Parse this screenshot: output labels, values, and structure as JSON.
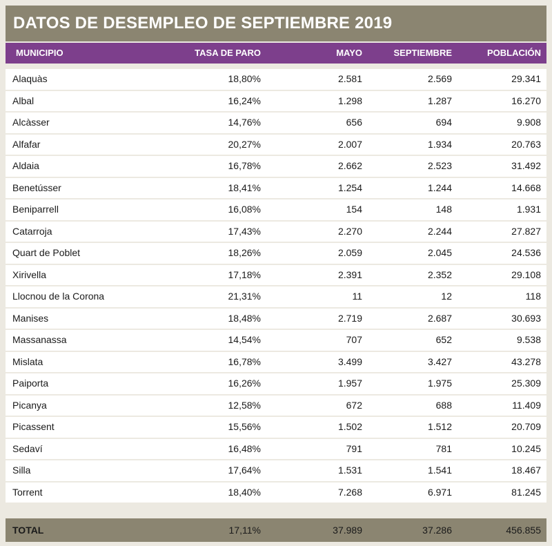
{
  "title": "DATOS DE DESEMPLEO DE SEPTIEMBRE 2019",
  "columns": {
    "municipio": "MUNICIPIO",
    "tasa": "TASA DE PARO",
    "mayo": "MAYO",
    "septiembre": "SEPTIEMBRE",
    "poblacion": "POBLACIÓN"
  },
  "rows": [
    {
      "municipio": "Alaquàs",
      "tasa": "18,80%",
      "mayo": "2.581",
      "septiembre": "2.569",
      "poblacion": "29.341"
    },
    {
      "municipio": "Albal",
      "tasa": "16,24%",
      "mayo": "1.298",
      "septiembre": "1.287",
      "poblacion": "16.270"
    },
    {
      "municipio": "Alcàsser",
      "tasa": "14,76%",
      "mayo": "656",
      "septiembre": "694",
      "poblacion": "9.908"
    },
    {
      "municipio": "Alfafar",
      "tasa": "20,27%",
      "mayo": "2.007",
      "septiembre": "1.934",
      "poblacion": "20.763"
    },
    {
      "municipio": "Aldaia",
      "tasa": "16,78%",
      "mayo": "2.662",
      "septiembre": "2.523",
      "poblacion": "31.492"
    },
    {
      "municipio": "Benetússer",
      "tasa": "18,41%",
      "mayo": "1.254",
      "septiembre": "1.244",
      "poblacion": "14.668"
    },
    {
      "municipio": "Beniparrell",
      "tasa": "16,08%",
      "mayo": "154",
      "septiembre": "148",
      "poblacion": "1.931"
    },
    {
      "municipio": "Catarroja",
      "tasa": "17,43%",
      "mayo": "2.270",
      "septiembre": "2.244",
      "poblacion": "27.827"
    },
    {
      "municipio": "Quart de Poblet",
      "tasa": "18,26%",
      "mayo": "2.059",
      "septiembre": "2.045",
      "poblacion": "24.536"
    },
    {
      "municipio": "Xirivella",
      "tasa": "17,18%",
      "mayo": "2.391",
      "septiembre": "2.352",
      "poblacion": "29.108"
    },
    {
      "municipio": "Llocnou de la Corona",
      "tasa": "21,31%",
      "mayo": "11",
      "septiembre": "12",
      "poblacion": "118"
    },
    {
      "municipio": "Manises",
      "tasa": "18,48%",
      "mayo": "2.719",
      "septiembre": "2.687",
      "poblacion": "30.693"
    },
    {
      "municipio": "Massanassa",
      "tasa": "14,54%",
      "mayo": "707",
      "septiembre": "652",
      "poblacion": "9.538"
    },
    {
      "municipio": "Mislata",
      "tasa": "16,78%",
      "mayo": "3.499",
      "septiembre": "3.427",
      "poblacion": "43.278"
    },
    {
      "municipio": "Paiporta",
      "tasa": "16,26%",
      "mayo": "1.957",
      "septiembre": "1.975",
      "poblacion": "25.309"
    },
    {
      "municipio": "Picanya",
      "tasa": "12,58%",
      "mayo": "672",
      "septiembre": "688",
      "poblacion": "11.409"
    },
    {
      "municipio": "Picassent",
      "tasa": "15,56%",
      "mayo": "1.502",
      "septiembre": "1.512",
      "poblacion": "20.709"
    },
    {
      "municipio": "Sedaví",
      "tasa": "16,48%",
      "mayo": "791",
      "septiembre": "781",
      "poblacion": "10.245"
    },
    {
      "municipio": "Silla",
      "tasa": "17,64%",
      "mayo": "1.531",
      "septiembre": "1.541",
      "poblacion": "18.467"
    },
    {
      "municipio": "Torrent",
      "tasa": "18,40%",
      "mayo": "7.268",
      "septiembre": "6.971",
      "poblacion": "81.245"
    }
  ],
  "total": {
    "label": "TOTAL",
    "tasa": "17,11%",
    "mayo": "37.989",
    "septiembre": "37.286",
    "poblacion": "456.855"
  },
  "colors": {
    "title_bar": "#8b8571",
    "header_bar": "#7d3f8c",
    "background": "#ece9e1",
    "row": "#ffffff"
  }
}
